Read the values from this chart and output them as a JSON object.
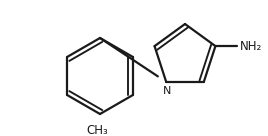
{
  "background_color": "#ffffff",
  "line_color": "#1a1a1a",
  "line_width": 1.6,
  "fig_width": 2.68,
  "fig_height": 1.36,
  "dpi": 100,
  "atoms": {
    "NH2_label": "NH₂",
    "N_label": "N",
    "CH3_label": "CH₃"
  },
  "font_size_NH2": 8.5,
  "font_size_N": 8.0,
  "font_size_CH3": 8.5,
  "xlim": [
    0,
    268
  ],
  "ylim": [
    0,
    136
  ]
}
